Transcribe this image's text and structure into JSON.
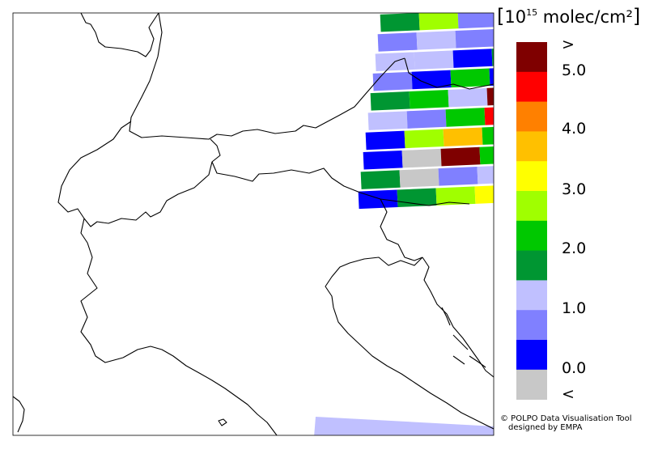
{
  "legend": {
    "unit_bracket_open": "[",
    "unit_base": "10",
    "unit_exponent": "15",
    "unit_rest": " molec/cm²",
    "unit_bracket_close": "]",
    "classes": [
      {
        "color": "#7f0000"
      },
      {
        "color": "#ff0000"
      },
      {
        "color": "#ff8000"
      },
      {
        "color": "#ffc000"
      },
      {
        "color": "#ffff00"
      },
      {
        "color": "#a0ff00"
      },
      {
        "color": "#00c800"
      },
      {
        "color": "#009632"
      },
      {
        "color": "#c0c0ff"
      },
      {
        "color": "#8080ff"
      },
      {
        "color": "#0000ff"
      },
      {
        "color": "#c8c8c8"
      }
    ],
    "tick_labels": [
      ">",
      "5.0",
      "4.0",
      "3.0",
      "2.0",
      "1.0",
      "0.0",
      "<"
    ]
  },
  "credit": {
    "line1": "© POLPO Data Visualisation Tool",
    "line2": "designed by EMPA"
  },
  "map": {
    "pixel_rows": [
      [
        "#009632",
        "#a0ff00",
        "#8080ff",
        "#0000ff"
      ],
      [
        "#8080ff",
        "#c0c0ff",
        "#8080ff"
      ],
      [
        "#c0c0ff",
        "#c0c0ff",
        "#0000ff",
        "#009632"
      ],
      [
        "#8080ff",
        "#0000ff",
        "#00c800",
        "#0000ff"
      ],
      [
        "#009632",
        "#00c800",
        "#c0c0ff",
        "#7f0000"
      ],
      [
        "#c0c0ff",
        "#8080ff",
        "#00c800",
        "#ff0000"
      ],
      [
        "#0000ff",
        "#a0ff00",
        "#ffc000",
        "#00c800"
      ],
      [
        "#0000ff",
        "#c8c8c8",
        "#7f0000",
        "#00c800"
      ],
      [
        "#009632",
        "#c8c8c8",
        "#8080ff",
        "#c0c0ff"
      ],
      [
        "#0000ff",
        "#009632",
        "#a0ff00",
        "#ffff00"
      ]
    ],
    "bottom_strip_color": "#c0c0ff"
  }
}
